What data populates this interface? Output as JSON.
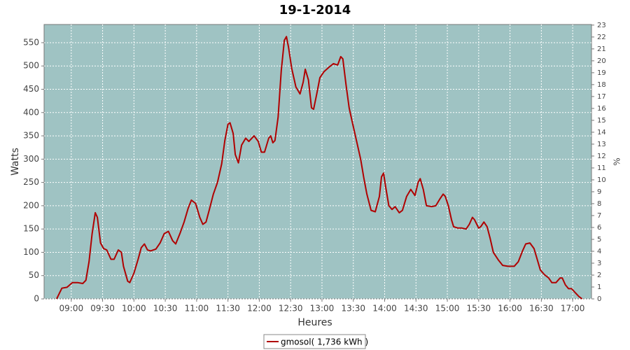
{
  "chart_data": {
    "type": "line",
    "title": "19-1-2014",
    "xlabel": "Heures",
    "ylabel": "Watts",
    "y2label": "%",
    "x": [
      "08:46",
      "08:51",
      "08:56",
      "09:01",
      "09:06",
      "09:11",
      "09:14",
      "09:17",
      "09:20",
      "09:23",
      "09:25",
      "09:28",
      "09:31",
      "09:34",
      "09:38",
      "09:41",
      "09:45",
      "09:48",
      "09:50",
      "09:54",
      "09:56",
      "10:00",
      "10:04",
      "10:07",
      "10:10",
      "10:13",
      "10:16",
      "10:21",
      "10:25",
      "10:29",
      "10:33",
      "10:37",
      "10:40",
      "10:44",
      "10:48",
      "10:52",
      "10:55",
      "10:59",
      "11:03",
      "11:06",
      "11:09",
      "11:12",
      "11:16",
      "11:20",
      "11:24",
      "11:27",
      "11:30",
      "11:32",
      "11:35",
      "11:37",
      "11:40",
      "11:43",
      "11:47",
      "11:50",
      "11:55",
      "11:59",
      "12:02",
      "12:05",
      "12:09",
      "12:11",
      "12:13",
      "12:15",
      "12:18",
      "12:21",
      "12:24",
      "12:26",
      "12:28",
      "12:31",
      "12:35",
      "12:39",
      "12:42",
      "12:44",
      "12:47",
      "12:50",
      "12:52",
      "12:55",
      "12:58",
      "13:02",
      "13:07",
      "13:11",
      "13:15",
      "13:18",
      "13:20",
      "13:23",
      "13:26",
      "13:29",
      "13:33",
      "13:37",
      "13:40",
      "13:43",
      "13:47",
      "13:51",
      "13:55",
      "13:57",
      "13:59",
      "14:01",
      "14:04",
      "14:07",
      "14:10",
      "14:14",
      "14:17",
      "14:21",
      "14:25",
      "14:29",
      "14:32",
      "14:34",
      "14:37",
      "14:40",
      "14:45",
      "14:49",
      "14:53",
      "14:56",
      "14:58",
      "15:01",
      "15:04",
      "15:06",
      "15:10",
      "15:14",
      "15:18",
      "15:21",
      "15:24",
      "15:26",
      "15:30",
      "15:32",
      "15:35",
      "15:38",
      "15:41",
      "15:44",
      "15:49",
      "15:53",
      "15:58",
      "16:04",
      "16:08",
      "16:12",
      "16:15",
      "16:19",
      "16:23",
      "16:26",
      "16:29",
      "16:33",
      "16:37",
      "16:40",
      "16:44",
      "16:48",
      "16:50",
      "16:53",
      "16:56",
      "16:59",
      "17:03",
      "17:06",
      "17:09"
    ],
    "series": [
      {
        "name": "gmosol( 1,736 kWh )",
        "color": "#b00000",
        "values": [
          0,
          23,
          25,
          35,
          35,
          33,
          40,
          80,
          140,
          185,
          175,
          120,
          108,
          105,
          85,
          85,
          105,
          100,
          70,
          38,
          35,
          55,
          85,
          110,
          118,
          105,
          103,
          107,
          120,
          140,
          145,
          125,
          118,
          140,
          165,
          195,
          212,
          205,
          175,
          160,
          165,
          190,
          225,
          250,
          290,
          340,
          375,
          378,
          355,
          310,
          292,
          330,
          345,
          338,
          350,
          338,
          315,
          315,
          345,
          350,
          335,
          340,
          390,
          490,
          555,
          563,
          540,
          495,
          455,
          440,
          465,
          493,
          470,
          410,
          407,
          440,
          475,
          488,
          498,
          505,
          502,
          520,
          515,
          460,
          410,
          380,
          340,
          300,
          260,
          225,
          190,
          187,
          220,
          262,
          270,
          240,
          200,
          192,
          198,
          185,
          190,
          220,
          235,
          222,
          250,
          258,
          235,
          200,
          198,
          200,
          215,
          225,
          220,
          200,
          170,
          155,
          152,
          152,
          150,
          160,
          175,
          170,
          152,
          155,
          165,
          155,
          130,
          100,
          83,
          72,
          70,
          70,
          80,
          103,
          118,
          120,
          108,
          85,
          62,
          52,
          45,
          35,
          35,
          45,
          45,
          30,
          22,
          22,
          12,
          5,
          0
        ]
      }
    ],
    "xlim": [
      "08:34",
      "17:18"
    ],
    "xticks": [
      "09:00",
      "09:30",
      "10:00",
      "10:30",
      "11:00",
      "11:30",
      "12:00",
      "12:30",
      "13:00",
      "13:30",
      "14:00",
      "14:30",
      "15:00",
      "15:30",
      "16:00",
      "16:30",
      "17:00"
    ],
    "ylim": [
      0,
      589
    ],
    "yticks": [
      0,
      50,
      100,
      150,
      200,
      250,
      300,
      350,
      400,
      450,
      500,
      550
    ],
    "y2lim": [
      0,
      23.05
    ],
    "y2ticks": [
      0,
      1,
      2,
      3,
      4,
      5,
      6,
      7,
      8,
      9,
      10,
      11,
      12,
      13,
      14,
      15,
      16,
      17,
      18,
      19,
      20,
      21,
      22,
      23
    ],
    "grid": true,
    "background": "#9fc3c3",
    "legend": "bottom"
  }
}
